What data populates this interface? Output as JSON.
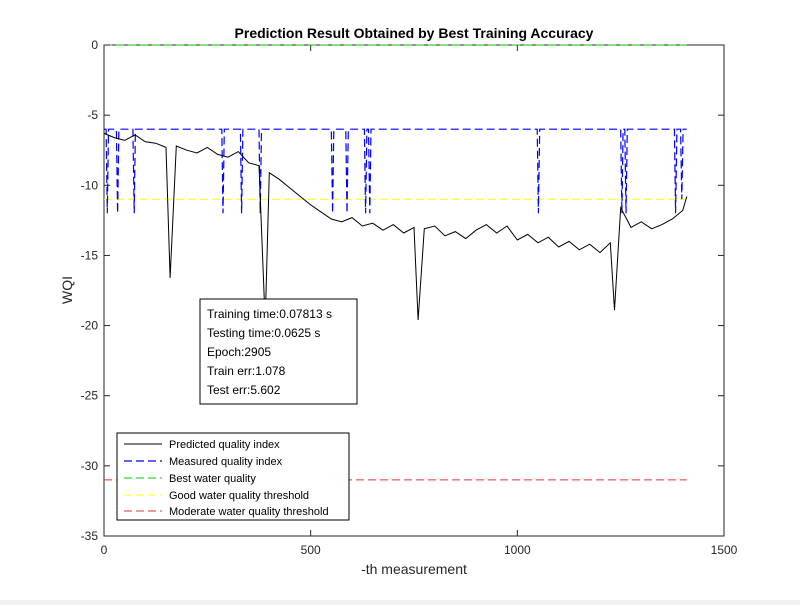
{
  "chart_data": {
    "type": "line",
    "title": "Prediction Result Obtained by Best Training Accuracy",
    "xlabel": "-th measurement",
    "ylabel": "WQI",
    "xlim": [
      0,
      1500
    ],
    "ylim": [
      -35,
      0
    ],
    "xticks": [
      0,
      500,
      1000,
      1500
    ],
    "yticks": [
      0,
      -5,
      -10,
      -15,
      -20,
      -25,
      -30,
      -35
    ],
    "grid": false,
    "legend_position": "bottom-left",
    "series": [
      {
        "name": "Predicted quality index",
        "color": "#000000",
        "style": "solid",
        "x": [
          0,
          25,
          50,
          75,
          100,
          125,
          150,
          160,
          175,
          200,
          225,
          250,
          275,
          300,
          325,
          350,
          375,
          390,
          400,
          425,
          450,
          475,
          500,
          525,
          550,
          575,
          600,
          625,
          650,
          675,
          700,
          725,
          750,
          760,
          775,
          800,
          825,
          850,
          875,
          900,
          925,
          950,
          975,
          1000,
          1025,
          1050,
          1075,
          1100,
          1125,
          1150,
          1175,
          1200,
          1225,
          1235,
          1250,
          1275,
          1300,
          1325,
          1350,
          1375,
          1400,
          1410
        ],
        "y": [
          -6.3,
          -6.6,
          -6.8,
          -6.4,
          -6.9,
          -7.0,
          -7.3,
          -16.6,
          -7.2,
          -7.5,
          -7.7,
          -7.3,
          -7.8,
          -8.0,
          -7.6,
          -8.4,
          -8.6,
          -19.8,
          -9.1,
          -9.6,
          -10.2,
          -10.8,
          -11.4,
          -11.9,
          -12.4,
          -12.6,
          -12.3,
          -12.9,
          -12.7,
          -13.2,
          -12.8,
          -13.4,
          -13.0,
          -19.6,
          -13.1,
          -12.9,
          -13.6,
          -13.3,
          -13.8,
          -13.2,
          -12.8,
          -13.4,
          -12.9,
          -13.9,
          -13.5,
          -14.1,
          -13.7,
          -14.4,
          -14.0,
          -14.6,
          -14.2,
          -14.8,
          -14.1,
          -18.9,
          -11.6,
          -13.0,
          -12.6,
          -13.1,
          -12.8,
          -12.4,
          -11.8,
          -10.8
        ]
      },
      {
        "name": "Measured quality index",
        "color": "#0000ff",
        "style": "dashed",
        "x": [
          0,
          5,
          8,
          11,
          14,
          30,
          33,
          36,
          70,
          73,
          76,
          285,
          288,
          291,
          330,
          333,
          336,
          375,
          378,
          381,
          550,
          553,
          556,
          585,
          588,
          591,
          630,
          633,
          636,
          640,
          643,
          646,
          1048,
          1051,
          1054,
          1250,
          1253,
          1256,
          1260,
          1263,
          1266,
          1380,
          1383,
          1386,
          1395,
          1398,
          1401,
          1410
        ],
        "y": [
          -6,
          -6,
          -12,
          -6,
          -6,
          -6,
          -12,
          -6,
          -6,
          -12,
          -6,
          -6,
          -12,
          -6,
          -6,
          -12,
          -6,
          -6,
          -12,
          -6,
          -6,
          -12,
          -6,
          -6,
          -12,
          -6,
          -6,
          -12,
          -6,
          -6,
          -12,
          -6,
          -6,
          -12,
          -6,
          -6,
          -12,
          -6,
          -6,
          -12,
          -6,
          -6,
          -12,
          -6,
          -6,
          -11,
          -6,
          -6
        ]
      },
      {
        "name": "Best water quality",
        "color": "#00cc00",
        "style": "dashed",
        "x": [
          0,
          1410
        ],
        "y": [
          0,
          0
        ]
      },
      {
        "name": "Good water quality threshold",
        "color": "#ffff00",
        "style": "dashed",
        "x": [
          0,
          1410
        ],
        "y": [
          -11,
          -11
        ]
      },
      {
        "name": "Moderate water quality threshold",
        "color": "#e83030",
        "style": "dashed",
        "x": [
          0,
          1410
        ],
        "y": [
          -31,
          -31
        ]
      }
    ],
    "annotation": {
      "lines": [
        "Training time:0.07813 s",
        "Testing time:0.0625 s",
        "Epoch:2905",
        "Train err:1.078",
        "Test err:5.602"
      ]
    }
  }
}
